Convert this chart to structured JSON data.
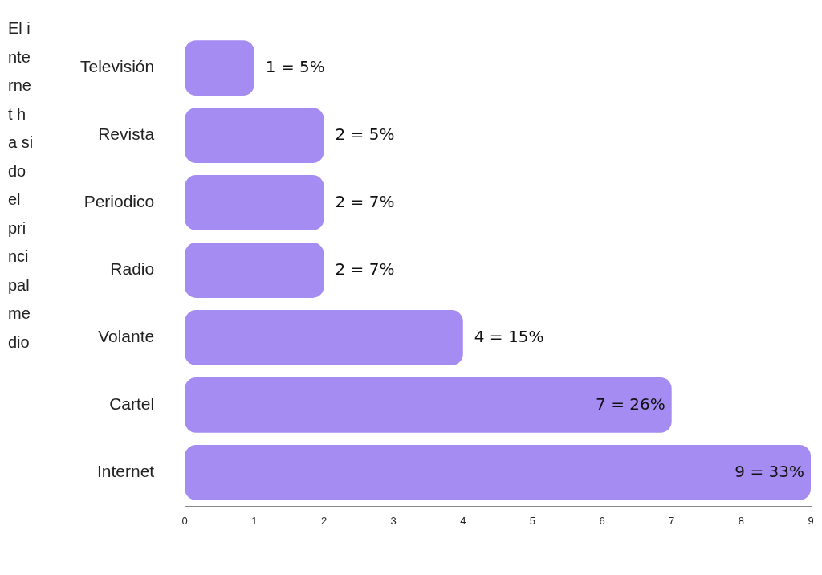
{
  "chart_data": {
    "type": "bar",
    "orientation": "horizontal",
    "categories": [
      "Televisión",
      "Revista",
      "Periodico",
      "Radio",
      "Volante",
      "Cartel",
      "Internet"
    ],
    "values": [
      1,
      2,
      2,
      2,
      4,
      7,
      9
    ],
    "value_labels": [
      "1 = 5%",
      "2 = 5%",
      "2 = 7%",
      "2 = 7%",
      "4 = 15%",
      "7 = 26%",
      "9 = 33%"
    ],
    "color": "#a48cf2",
    "xlim": [
      0,
      9
    ],
    "xticks": [
      0,
      1,
      2,
      3,
      4,
      5,
      6,
      7,
      8,
      9
    ],
    "grid": false,
    "legend": false,
    "annotations": [
      "El internet ha sido el principal medio"
    ]
  }
}
